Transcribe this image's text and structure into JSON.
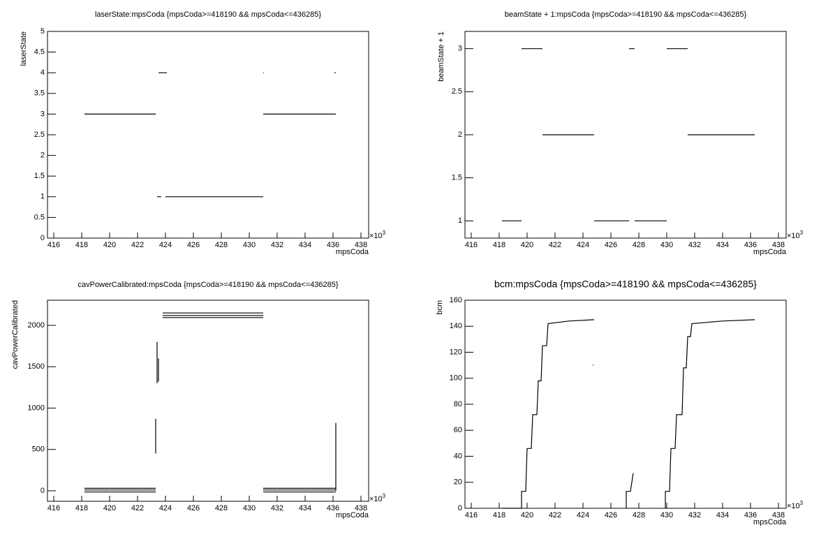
{
  "chart_data": [
    {
      "type": "line",
      "title": "laserState:mpsCoda {mpsCoda>=418190 && mpsCoda<=436285}",
      "x_label": "mpsCoda",
      "y_label": "laserState",
      "x_multiplier": "×10",
      "x_multiplier_exp": "3",
      "xlim": [
        415.55,
        438.55
      ],
      "xticks": [
        416,
        418,
        420,
        422,
        424,
        426,
        428,
        430,
        432,
        434,
        436,
        438
      ],
      "ylim": [
        0,
        5
      ],
      "yticks": [
        0,
        0.5,
        1,
        1.5,
        2,
        2.5,
        3,
        3.5,
        4,
        4.5,
        5
      ],
      "color": "#000000",
      "x": [
        418.2,
        423.3,
        null,
        423.5,
        424.1,
        null,
        423.4,
        423.7,
        null,
        424.0,
        431.0,
        null,
        431.0,
        431.05,
        null,
        431.0,
        436.2,
        null,
        436.1,
        436.2
      ],
      "values": [
        3,
        3,
        null,
        4,
        4,
        null,
        1,
        1,
        null,
        1,
        1,
        null,
        4,
        4,
        null,
        3,
        3,
        null,
        4,
        4
      ]
    },
    {
      "type": "line",
      "title": "beamState + 1:mpsCoda {mpsCoda>=418190 && mpsCoda<=436285}",
      "x_label": "mpsCoda",
      "y_label": "beamState + 1",
      "x_multiplier": "×10",
      "x_multiplier_exp": "3",
      "xlim": [
        415.55,
        438.55
      ],
      "xticks": [
        416,
        418,
        420,
        422,
        424,
        426,
        428,
        430,
        432,
        434,
        436,
        438
      ],
      "ylim": [
        0.8,
        3.2
      ],
      "yticks": [
        1,
        1.5,
        2,
        2.5,
        3
      ],
      "color": "#000000",
      "x": [
        418.2,
        419.6,
        null,
        419.6,
        421.1,
        null,
        421.1,
        424.8,
        null,
        424.8,
        427.3,
        null,
        427.3,
        427.7,
        null,
        427.7,
        430.0,
        null,
        430.0,
        431.5,
        null,
        431.5,
        436.3
      ],
      "values": [
        1,
        1,
        null,
        3,
        3,
        null,
        2,
        2,
        null,
        1,
        1,
        null,
        3,
        3,
        null,
        1,
        1,
        null,
        3,
        3,
        null,
        2,
        2
      ]
    },
    {
      "type": "line",
      "title": "cavPowerCalibrated:mpsCoda {mpsCoda>=418190 && mpsCoda<=436285}",
      "x_label": "mpsCoda",
      "y_label": "cavPowerCalibrated",
      "x_multiplier": "×10",
      "x_multiplier_exp": "3",
      "xlim": [
        415.55,
        438.55
      ],
      "xticks": [
        416,
        418,
        420,
        422,
        424,
        426,
        428,
        430,
        432,
        434,
        436,
        438
      ],
      "ylim": [
        -127,
        2304
      ],
      "yticks": [
        0,
        500,
        1000,
        1500,
        2000
      ],
      "color": "#000000",
      "x": [
        418.2,
        423.3,
        null,
        418.2,
        423.3,
        null,
        418.2,
        423.3,
        null,
        423.3,
        423.3,
        null,
        423.4,
        423.4,
        null,
        423.5,
        423.5,
        null,
        423.8,
        431.0,
        null,
        423.8,
        431.0,
        null,
        423.8,
        431.0,
        null,
        431.0,
        436.2,
        null,
        431.0,
        436.2,
        null,
        431.0,
        436.2,
        null,
        436.2,
        436.2
      ],
      "values": [
        30,
        30,
        null,
        10,
        10,
        null,
        -15,
        -15,
        null,
        450,
        870,
        null,
        1300,
        1800,
        null,
        1320,
        1600,
        null,
        2150,
        2150,
        null,
        2120,
        2120,
        null,
        2095,
        2095,
        null,
        30,
        30,
        null,
        10,
        10,
        null,
        -15,
        -15,
        null,
        0,
        820
      ]
    },
    {
      "type": "line",
      "title": "bcm:mpsCoda {mpsCoda>=418190 && mpsCoda<=436285}",
      "x_label": "mpsCoda",
      "y_label": "bcm",
      "x_multiplier": "×10",
      "x_multiplier_exp": "3",
      "xlim": [
        415.55,
        438.55
      ],
      "xticks": [
        416,
        418,
        420,
        422,
        424,
        426,
        428,
        430,
        432,
        434,
        436,
        438
      ],
      "ylim": [
        0,
        160
      ],
      "yticks": [
        0,
        20,
        40,
        60,
        80,
        100,
        120,
        140,
        160
      ],
      "color": "#000000",
      "x": [
        418.2,
        419.6,
        419.6,
        419.9,
        420.0,
        420.3,
        420.4,
        420.7,
        420.8,
        421.0,
        421.1,
        421.4,
        421.5,
        423.0,
        424.8,
        null,
        424.7,
        424.75,
        null,
        427.1,
        427.1,
        427.4,
        427.6,
        null,
        429.9,
        429.9,
        430.2,
        430.3,
        430.6,
        430.7,
        431.1,
        431.2,
        431.4,
        431.5,
        431.7,
        431.8,
        434.0,
        436.3
      ],
      "values": [
        0,
        0,
        13,
        13,
        46,
        46,
        72,
        72,
        98,
        98,
        125,
        125,
        142,
        144,
        145,
        null,
        110,
        110,
        null,
        0,
        13,
        13,
        27,
        null,
        0,
        13,
        13,
        46,
        46,
        72,
        72,
        108,
        108,
        132,
        132,
        142,
        144,
        145
      ]
    }
  ]
}
